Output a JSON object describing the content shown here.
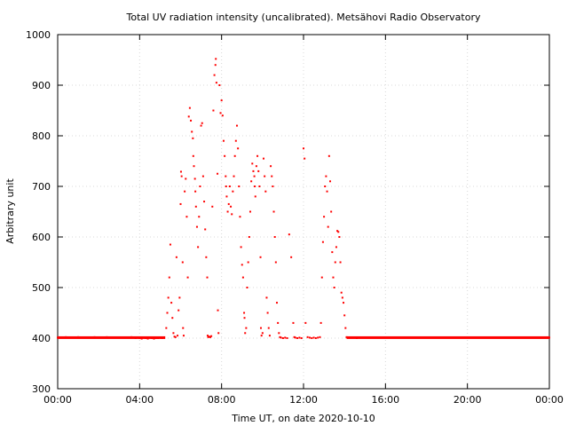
{
  "chart_data": {
    "type": "scatter",
    "title": "Total UV radiation intensity (uncalibrated). Metsähovi Radio Observatory",
    "xlabel": "Time UT, on date 2020-10-10",
    "ylabel": "Arbitrary unit",
    "x_unit": "hours UT",
    "xlim": [
      0,
      24
    ],
    "ylim": [
      300,
      1000
    ],
    "x_ticks": [
      {
        "value": 0,
        "label": "00:00"
      },
      {
        "value": 4,
        "label": "04:00"
      },
      {
        "value": 8,
        "label": "08:00"
      },
      {
        "value": 12,
        "label": "12:00"
      },
      {
        "value": 16,
        "label": "16:00"
      },
      {
        "value": 20,
        "label": "20:00"
      },
      {
        "value": 24,
        "label": "00:00"
      }
    ],
    "y_ticks": [
      {
        "value": 300,
        "label": "300"
      },
      {
        "value": 400,
        "label": "400"
      },
      {
        "value": 500,
        "label": "500"
      },
      {
        "value": 600,
        "label": "600"
      },
      {
        "value": 700,
        "label": "700"
      },
      {
        "value": 800,
        "label": "800"
      },
      {
        "value": 900,
        "label": "900"
      },
      {
        "value": 1000,
        "label": "1000"
      }
    ],
    "grid": true,
    "legend": "none",
    "marker_color": "#ff0000",
    "series": [
      {
        "points": [
          [
            0.0,
            401
          ],
          [
            0.2,
            401
          ],
          [
            0.4,
            402
          ],
          [
            0.6,
            401
          ],
          [
            0.8,
            401
          ],
          [
            1.0,
            402
          ],
          [
            1.2,
            401
          ],
          [
            1.4,
            401
          ],
          [
            1.6,
            401
          ],
          [
            1.8,
            402
          ],
          [
            2.0,
            401
          ],
          [
            2.2,
            401
          ],
          [
            2.4,
            402
          ],
          [
            2.6,
            401
          ],
          [
            2.8,
            401
          ],
          [
            3.0,
            401
          ],
          [
            3.2,
            401
          ],
          [
            3.4,
            401
          ],
          [
            3.6,
            402
          ],
          [
            3.8,
            400
          ],
          [
            4.0,
            400
          ],
          [
            4.1,
            399
          ],
          [
            4.2,
            401
          ],
          [
            4.3,
            400
          ],
          [
            4.4,
            399
          ],
          [
            4.5,
            401
          ],
          [
            4.6,
            400
          ],
          [
            4.7,
            399
          ],
          [
            4.8,
            400
          ],
          [
            4.9,
            400
          ],
          [
            5.0,
            401
          ],
          [
            5.1,
            400
          ],
          [
            5.2,
            401
          ],
          [
            5.3,
            420
          ],
          [
            5.35,
            450
          ],
          [
            5.4,
            480
          ],
          [
            5.45,
            520
          ],
          [
            5.5,
            585
          ],
          [
            5.55,
            470
          ],
          [
            5.6,
            440
          ],
          [
            5.65,
            410
          ],
          [
            5.7,
            403
          ],
          [
            5.75,
            402
          ],
          [
            5.8,
            560
          ],
          [
            5.85,
            405
          ],
          [
            5.9,
            455
          ],
          [
            5.95,
            480
          ],
          [
            6.0,
            665
          ],
          [
            6.02,
            729
          ],
          [
            6.05,
            720
          ],
          [
            6.1,
            550
          ],
          [
            6.12,
            420
          ],
          [
            6.15,
            405
          ],
          [
            6.2,
            690
          ],
          [
            6.25,
            715
          ],
          [
            6.3,
            640
          ],
          [
            6.35,
            520
          ],
          [
            6.4,
            838
          ],
          [
            6.45,
            855
          ],
          [
            6.5,
            830
          ],
          [
            6.55,
            808
          ],
          [
            6.6,
            795
          ],
          [
            6.62,
            760
          ],
          [
            6.65,
            740
          ],
          [
            6.7,
            715
          ],
          [
            6.72,
            690
          ],
          [
            6.75,
            660
          ],
          [
            6.8,
            620
          ],
          [
            6.85,
            580
          ],
          [
            6.9,
            640
          ],
          [
            6.95,
            700
          ],
          [
            7.0,
            820
          ],
          [
            7.05,
            825
          ],
          [
            7.1,
            720
          ],
          [
            7.15,
            670
          ],
          [
            7.2,
            615
          ],
          [
            7.25,
            560
          ],
          [
            7.3,
            520
          ],
          [
            7.32,
            405
          ],
          [
            7.35,
            402
          ],
          [
            7.4,
            403
          ],
          [
            7.45,
            402
          ],
          [
            7.5,
            404
          ],
          [
            7.55,
            660
          ],
          [
            7.6,
            850
          ],
          [
            7.65,
            920
          ],
          [
            7.7,
            940
          ],
          [
            7.72,
            952
          ],
          [
            7.75,
            905
          ],
          [
            7.8,
            725
          ],
          [
            7.82,
            455
          ],
          [
            7.85,
            410
          ],
          [
            7.9,
            900
          ],
          [
            7.95,
            845
          ],
          [
            8.0,
            870
          ],
          [
            8.05,
            840
          ],
          [
            8.1,
            790
          ],
          [
            8.15,
            760
          ],
          [
            8.2,
            720
          ],
          [
            8.22,
            700
          ],
          [
            8.25,
            680
          ],
          [
            8.3,
            650
          ],
          [
            8.35,
            665
          ],
          [
            8.4,
            700
          ],
          [
            8.45,
            660
          ],
          [
            8.5,
            645
          ],
          [
            8.55,
            690
          ],
          [
            8.6,
            720
          ],
          [
            8.65,
            760
          ],
          [
            8.7,
            790
          ],
          [
            8.75,
            820
          ],
          [
            8.8,
            775
          ],
          [
            8.85,
            700
          ],
          [
            8.9,
            640
          ],
          [
            8.95,
            580
          ],
          [
            9.0,
            545
          ],
          [
            9.05,
            520
          ],
          [
            9.1,
            450
          ],
          [
            9.12,
            440
          ],
          [
            9.15,
            410
          ],
          [
            9.2,
            420
          ],
          [
            9.25,
            500
          ],
          [
            9.3,
            550
          ],
          [
            9.35,
            600
          ],
          [
            9.4,
            650
          ],
          [
            9.45,
            710
          ],
          [
            9.5,
            745
          ],
          [
            9.55,
            730
          ],
          [
            9.6,
            720
          ],
          [
            9.62,
            700
          ],
          [
            9.65,
            680
          ],
          [
            9.7,
            740
          ],
          [
            9.75,
            760
          ],
          [
            9.8,
            730
          ],
          [
            9.85,
            700
          ],
          [
            9.9,
            560
          ],
          [
            9.92,
            420
          ],
          [
            9.95,
            405
          ],
          [
            10.0,
            410
          ],
          [
            10.05,
            755
          ],
          [
            10.1,
            720
          ],
          [
            10.15,
            690
          ],
          [
            10.2,
            480
          ],
          [
            10.25,
            450
          ],
          [
            10.3,
            420
          ],
          [
            10.35,
            405
          ],
          [
            10.4,
            740
          ],
          [
            10.45,
            720
          ],
          [
            10.5,
            700
          ],
          [
            10.55,
            650
          ],
          [
            10.6,
            600
          ],
          [
            10.65,
            550
          ],
          [
            10.7,
            470
          ],
          [
            10.75,
            430
          ],
          [
            10.8,
            410
          ],
          [
            10.85,
            402
          ],
          [
            10.9,
            401
          ],
          [
            11.0,
            400
          ],
          [
            11.1,
            401
          ],
          [
            11.2,
            400
          ],
          [
            11.3,
            605
          ],
          [
            11.4,
            560
          ],
          [
            11.5,
            430
          ],
          [
            11.55,
            402
          ],
          [
            11.6,
            401
          ],
          [
            11.7,
            400
          ],
          [
            11.8,
            401
          ],
          [
            11.9,
            400
          ],
          [
            12.0,
            775
          ],
          [
            12.05,
            755
          ],
          [
            12.1,
            430
          ],
          [
            12.2,
            402
          ],
          [
            12.3,
            401
          ],
          [
            12.4,
            400
          ],
          [
            12.5,
            401
          ],
          [
            12.6,
            400
          ],
          [
            12.7,
            401
          ],
          [
            12.8,
            402
          ],
          [
            12.85,
            430
          ],
          [
            12.9,
            520
          ],
          [
            12.95,
            590
          ],
          [
            13.0,
            640
          ],
          [
            13.05,
            700
          ],
          [
            13.1,
            720
          ],
          [
            13.15,
            690
          ],
          [
            13.2,
            620
          ],
          [
            13.25,
            760
          ],
          [
            13.3,
            710
          ],
          [
            13.35,
            650
          ],
          [
            13.4,
            570
          ],
          [
            13.45,
            520
          ],
          [
            13.5,
            500
          ],
          [
            13.55,
            550
          ],
          [
            13.6,
            580
          ],
          [
            13.65,
            612
          ],
          [
            13.7,
            610
          ],
          [
            13.75,
            600
          ],
          [
            13.8,
            550
          ],
          [
            13.85,
            490
          ],
          [
            13.9,
            480
          ],
          [
            13.95,
            470
          ],
          [
            14.0,
            445
          ],
          [
            14.05,
            420
          ],
          [
            14.1,
            402
          ],
          [
            14.2,
            401
          ],
          [
            14.4,
            401
          ],
          [
            14.6,
            400
          ],
          [
            14.8,
            401
          ],
          [
            15.0,
            401
          ],
          [
            15.2,
            401
          ],
          [
            15.4,
            401
          ],
          [
            15.6,
            401
          ],
          [
            15.8,
            401
          ],
          [
            16.0,
            401
          ],
          [
            16.2,
            401
          ],
          [
            16.4,
            401
          ],
          [
            16.6,
            401
          ],
          [
            16.8,
            401
          ],
          [
            17.0,
            401
          ],
          [
            17.2,
            401
          ],
          [
            17.4,
            401
          ],
          [
            17.6,
            401
          ],
          [
            17.8,
            401
          ],
          [
            18.0,
            401
          ],
          [
            18.2,
            401
          ],
          [
            18.4,
            401
          ],
          [
            18.6,
            401
          ],
          [
            18.8,
            401
          ],
          [
            19.0,
            401
          ],
          [
            19.2,
            401
          ],
          [
            19.4,
            401
          ],
          [
            19.6,
            401
          ],
          [
            19.8,
            401
          ],
          [
            20.0,
            401
          ],
          [
            20.2,
            401
          ],
          [
            20.4,
            401
          ],
          [
            20.6,
            401
          ],
          [
            20.8,
            401
          ],
          [
            21.0,
            401
          ],
          [
            21.2,
            401
          ],
          [
            21.4,
            401
          ],
          [
            21.6,
            401
          ],
          [
            21.8,
            401
          ],
          [
            22.0,
            401
          ],
          [
            22.2,
            401
          ],
          [
            22.4,
            401
          ],
          [
            22.6,
            401
          ],
          [
            22.8,
            401
          ],
          [
            23.0,
            401
          ],
          [
            23.2,
            401
          ],
          [
            23.4,
            401
          ],
          [
            23.6,
            401
          ],
          [
            23.8,
            401
          ],
          [
            24.0,
            401
          ]
        ]
      }
    ]
  }
}
